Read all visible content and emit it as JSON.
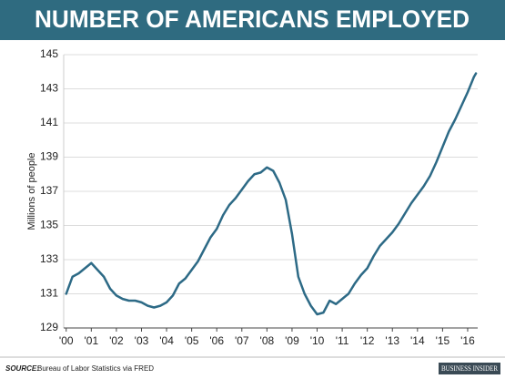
{
  "chart_data": {
    "type": "line",
    "title": "NUMBER OF AMERICANS EMPLOYED",
    "y_label": "Millions of people",
    "source_label": "SOURCE:",
    "source": "Bureau of Labor Statistics via FRED",
    "logo": "BUSINESS INSIDER",
    "color": "#2d6a86",
    "grid": true,
    "x": [
      2000,
      2000.25,
      2000.5,
      2000.75,
      2001,
      2001.25,
      2001.5,
      2001.75,
      2002,
      2002.25,
      2002.5,
      2002.75,
      2003,
      2003.25,
      2003.5,
      2003.75,
      2004,
      2004.25,
      2004.5,
      2004.75,
      2005,
      2005.25,
      2005.5,
      2005.75,
      2006,
      2006.25,
      2006.5,
      2006.75,
      2007,
      2007.25,
      2007.5,
      2007.75,
      2008,
      2008.25,
      2008.5,
      2008.75,
      2009,
      2009.25,
      2009.5,
      2009.75,
      2010,
      2010.25,
      2010.5,
      2010.75,
      2011,
      2011.25,
      2011.5,
      2011.75,
      2012,
      2012.25,
      2012.5,
      2012.75,
      2013,
      2013.25,
      2013.5,
      2013.75,
      2014,
      2014.25,
      2014.5,
      2014.75,
      2015,
      2015.25,
      2015.5,
      2015.75,
      2016,
      2016.25,
      2016.33
    ],
    "values": [
      131.0,
      132.0,
      132.2,
      132.5,
      132.8,
      132.4,
      132.0,
      131.3,
      130.9,
      130.7,
      130.6,
      130.6,
      130.5,
      130.3,
      130.2,
      130.3,
      130.5,
      130.9,
      131.6,
      131.9,
      132.4,
      132.9,
      133.6,
      134.3,
      134.8,
      135.6,
      136.2,
      136.6,
      137.1,
      137.6,
      138.0,
      138.1,
      138.4,
      138.2,
      137.5,
      136.5,
      134.5,
      132.0,
      131.0,
      130.3,
      129.8,
      129.9,
      130.6,
      130.4,
      130.7,
      131.0,
      131.6,
      132.1,
      132.5,
      133.2,
      133.8,
      134.2,
      134.6,
      135.1,
      135.7,
      136.3,
      136.8,
      137.3,
      137.9,
      138.7,
      139.6,
      140.5,
      141.2,
      142.0,
      142.8,
      143.7,
      143.9
    ],
    "xlim": [
      1999.9,
      2016.4
    ],
    "xticks": [
      {
        "value": 2000,
        "label": "'00"
      },
      {
        "value": 2001,
        "label": "'01"
      },
      {
        "value": 2002,
        "label": "'02"
      },
      {
        "value": 2003,
        "label": "'03"
      },
      {
        "value": 2004,
        "label": "'04"
      },
      {
        "value": 2005,
        "label": "'05"
      },
      {
        "value": 2006,
        "label": "'06"
      },
      {
        "value": 2007,
        "label": "'07"
      },
      {
        "value": 2008,
        "label": "'08"
      },
      {
        "value": 2009,
        "label": "'09"
      },
      {
        "value": 2010,
        "label": "'10"
      },
      {
        "value": 2011,
        "label": "'11"
      },
      {
        "value": 2012,
        "label": "'12"
      },
      {
        "value": 2013,
        "label": "'13"
      },
      {
        "value": 2014,
        "label": "'14"
      },
      {
        "value": 2015,
        "label": "'15"
      },
      {
        "value": 2016,
        "label": "'16"
      }
    ],
    "ylim": [
      129,
      145
    ],
    "yticks": [
      129,
      131,
      133,
      135,
      137,
      139,
      141,
      143,
      145
    ]
  }
}
